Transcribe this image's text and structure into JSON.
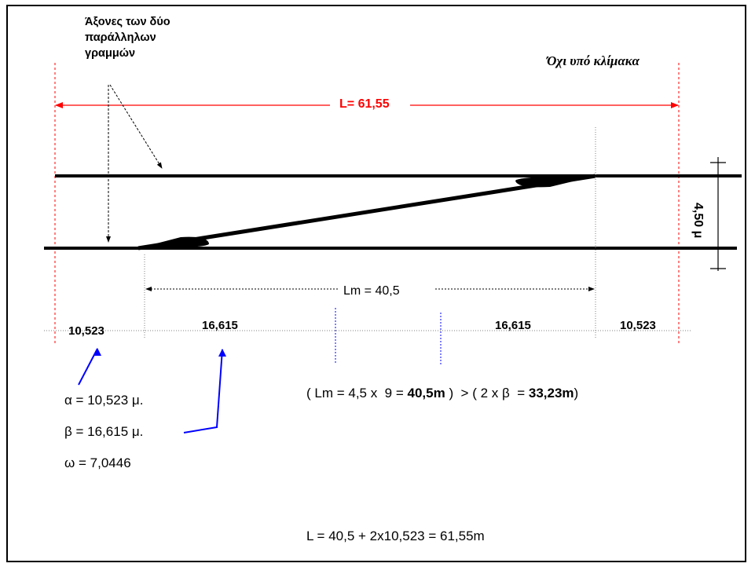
{
  "annotations": {
    "axes_label_line1": "Άξονες των δύο",
    "axes_label_line2": "παράλληλων",
    "axes_label_line3": "γραμμών",
    "not_to_scale": "Όχι υπό κλίμακα",
    "total_length": "L= 61,55",
    "track_spacing": "4,50 μ",
    "middle_length": "Lm = 40,5"
  },
  "segments": [
    "10,523",
    "16,615",
    "16,615",
    "10,523"
  ],
  "parameters": {
    "alpha": "α = 10,523 μ.",
    "beta": "β = 16,615 μ.",
    "omega": "ω = 7,0446"
  },
  "equations": {
    "comparison_a": "( Lm = 4,5 x  9 = ",
    "comparison_b": "40,5m",
    "comparison_c": " )  > ( 2 x β  = ",
    "comparison_d": "33,23m",
    "comparison_e": ")",
    "total": "L = 40,5 + 2x10,523 = 61,55m"
  },
  "colors": {
    "dimension_red": "#ff0000",
    "pointer_blue": "#0000ff",
    "line_black": "#000000",
    "guide_gray": "#808080"
  }
}
